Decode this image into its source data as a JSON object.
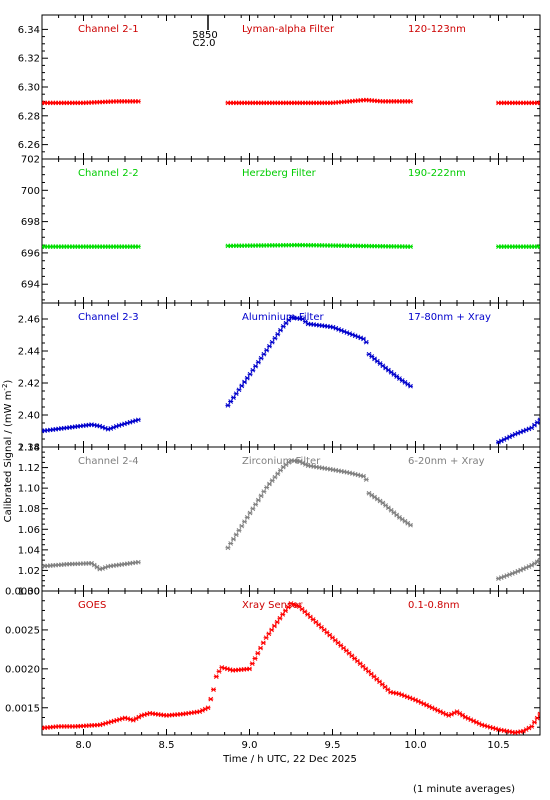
{
  "figure": {
    "xlabel": "Time / h UTC, 22 Dec 2025",
    "ylabel": "Calibrated Signal / (mW m",
    "ylabel_sup": "-2",
    "ylabel_close": ")",
    "footer": "(1 minute averages)",
    "marker_label_top": "5850",
    "marker_label_bottom": "C2.0"
  },
  "chart_data": [
    {
      "type": "scatter",
      "panel": "Channel 2-1",
      "labels": [
        "Channel 2-1",
        "Lyman-alpha Filter",
        "120-123nm"
      ],
      "color": "#ff0000",
      "label_color": "#cc0000",
      "xlim": [
        7.75,
        10.75
      ],
      "ylim": [
        6.25,
        6.35
      ],
      "yticks": [
        6.26,
        6.28,
        6.3,
        6.32,
        6.34
      ],
      "ytick_labels": [
        "6.26",
        "6.28",
        "6.30",
        "6.32",
        "6.34"
      ],
      "segments": [
        {
          "x": [
            7.75,
            8.0,
            8.2,
            8.33
          ],
          "y": [
            6.289,
            6.289,
            6.29,
            6.29
          ]
        },
        {
          "x": [
            8.87,
            9.2,
            9.5,
            9.7,
            9.8,
            9.97
          ],
          "y": [
            6.289,
            6.289,
            6.289,
            6.291,
            6.29,
            6.29
          ]
        },
        {
          "x": [
            10.5,
            10.75
          ],
          "y": [
            6.289,
            6.289
          ]
        }
      ]
    },
    {
      "type": "scatter",
      "panel": "Channel 2-2",
      "labels": [
        "Channel 2-2",
        "Herzberg Filter",
        "190-222nm"
      ],
      "color": "#00dd00",
      "label_color": "#00cc00",
      "xlim": [
        7.75,
        10.75
      ],
      "ylim": [
        692.8,
        702
      ],
      "yticks": [
        694,
        696,
        698,
        700,
        702
      ],
      "ytick_labels": [
        "694",
        "696",
        "698",
        "700",
        "702"
      ],
      "segments": [
        {
          "x": [
            7.75,
            8.33
          ],
          "y": [
            696.4,
            696.4
          ]
        },
        {
          "x": [
            8.87,
            9.3,
            9.97
          ],
          "y": [
            696.45,
            696.5,
            696.4
          ]
        },
        {
          "x": [
            10.5,
            10.75
          ],
          "y": [
            696.4,
            696.4
          ]
        }
      ]
    },
    {
      "type": "scatter",
      "panel": "Channel 2-3",
      "labels": [
        "Channel 2-3",
        "Aluminium Filter",
        "17-80nm + Xray"
      ],
      "color": "#0000cc",
      "label_color": "#0000cc",
      "xlim": [
        7.75,
        10.75
      ],
      "ylim": [
        2.38,
        2.47
      ],
      "yticks": [
        2.38,
        2.4,
        2.42,
        2.44,
        2.46
      ],
      "ytick_labels": [
        "2.38",
        "2.40",
        "2.42",
        "2.44",
        "2.46"
      ],
      "segments": [
        {
          "x": [
            7.75,
            7.9,
            8.05,
            8.1,
            8.15,
            8.2,
            8.33
          ],
          "y": [
            2.39,
            2.392,
            2.394,
            2.393,
            2.391,
            2.393,
            2.397
          ]
        },
        {
          "x": [
            8.87,
            9.0,
            9.1,
            9.2,
            9.25,
            9.32,
            9.35,
            9.5,
            9.6,
            9.7,
            9.72,
            9.8,
            9.9,
            9.97
          ],
          "y": [
            2.406,
            2.425,
            2.44,
            2.455,
            2.461,
            2.46,
            2.457,
            2.455,
            2.451,
            2.447,
            2.438,
            2.431,
            2.423,
            2.418
          ]
        },
        {
          "x": [
            10.5,
            10.6,
            10.7,
            10.75
          ],
          "y": [
            2.383,
            2.388,
            2.392,
            2.397
          ]
        }
      ]
    },
    {
      "type": "scatter",
      "panel": "Channel 2-4",
      "labels": [
        "Channel 2-4",
        "Zirconium Filter",
        "6-20nm + Xray"
      ],
      "color": "#808080",
      "label_color": "#808080",
      "xlim": [
        7.75,
        10.75
      ],
      "ylim": [
        1.0,
        1.14
      ],
      "yticks": [
        1.0,
        1.02,
        1.04,
        1.06,
        1.08,
        1.1,
        1.12,
        1.14
      ],
      "ytick_labels": [
        "1.00",
        "1.02",
        "1.04",
        "1.06",
        "1.08",
        "1.10",
        "1.12",
        "1.14"
      ],
      "segments": [
        {
          "x": [
            7.75,
            7.9,
            8.05,
            8.1,
            8.15,
            8.33
          ],
          "y": [
            1.024,
            1.026,
            1.027,
            1.021,
            1.024,
            1.028
          ]
        },
        {
          "x": [
            8.87,
            9.0,
            9.1,
            9.2,
            9.25,
            9.3,
            9.35,
            9.5,
            9.6,
            9.7,
            9.72,
            9.8,
            9.9,
            9.97
          ],
          "y": [
            1.042,
            1.075,
            1.1,
            1.12,
            1.127,
            1.126,
            1.122,
            1.118,
            1.115,
            1.111,
            1.095,
            1.086,
            1.072,
            1.064
          ]
        },
        {
          "x": [
            10.5,
            10.6,
            10.7,
            10.75
          ],
          "y": [
            1.012,
            1.018,
            1.025,
            1.03
          ]
        }
      ]
    },
    {
      "type": "scatter",
      "panel": "GOES",
      "labels": [
        "GOES",
        "Xray Sensor",
        "0.1-0.8nm"
      ],
      "color": "#ff0000",
      "label_color": "#cc0000",
      "xlim": [
        7.75,
        10.75
      ],
      "ylim": [
        0.00115,
        0.003
      ],
      "yticks": [
        0.0015,
        0.002,
        0.0025,
        0.003
      ],
      "ytick_labels": [
        "0.0015",
        "0.0020",
        "0.0025",
        "0.0030"
      ],
      "segments": [
        {
          "x": [
            7.75,
            7.85,
            7.95,
            8.1,
            8.2,
            8.25,
            8.3,
            8.35,
            8.4,
            8.5,
            8.6,
            8.7,
            8.75,
            8.78,
            8.8,
            8.83,
            8.9,
            9.0,
            9.1,
            9.2,
            9.25,
            9.3,
            9.4,
            9.5,
            9.6,
            9.7,
            9.8,
            9.85,
            9.9,
            10.0,
            10.1,
            10.2,
            10.25,
            10.3,
            10.4,
            10.5,
            10.6,
            10.65,
            10.7,
            10.75
          ],
          "y": [
            0.00124,
            0.00126,
            0.00126,
            0.00128,
            0.00134,
            0.00137,
            0.00134,
            0.0014,
            0.00143,
            0.0014,
            0.00142,
            0.00145,
            0.0015,
            0.0017,
            0.0019,
            0.00202,
            0.00198,
            0.002,
            0.0024,
            0.0027,
            0.00284,
            0.0028,
            0.0026,
            0.0024,
            0.0022,
            0.002,
            0.0018,
            0.0017,
            0.00168,
            0.0016,
            0.0015,
            0.0014,
            0.00145,
            0.00138,
            0.00128,
            0.00122,
            0.00118,
            0.0012,
            0.00126,
            0.00142
          ]
        }
      ]
    }
  ],
  "xticks": [
    8.0,
    8.5,
    9.0,
    9.5,
    10.0,
    10.5
  ],
  "xtick_labels": [
    "8.0",
    "8.5",
    "9.0",
    "9.5",
    "10.0",
    "10.5"
  ],
  "marker_x": 8.75
}
